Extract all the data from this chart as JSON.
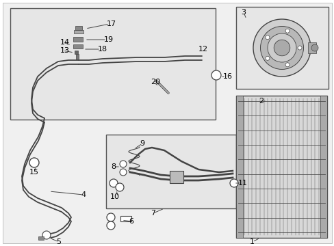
{
  "bg_color": "#ffffff",
  "outer_bg": "#f2f2f2",
  "box_bg": "#e8e8e8",
  "line_color": "#444444",
  "text_color": "#000000",
  "fig_w": 4.89,
  "fig_h": 3.6,
  "dpi": 100
}
